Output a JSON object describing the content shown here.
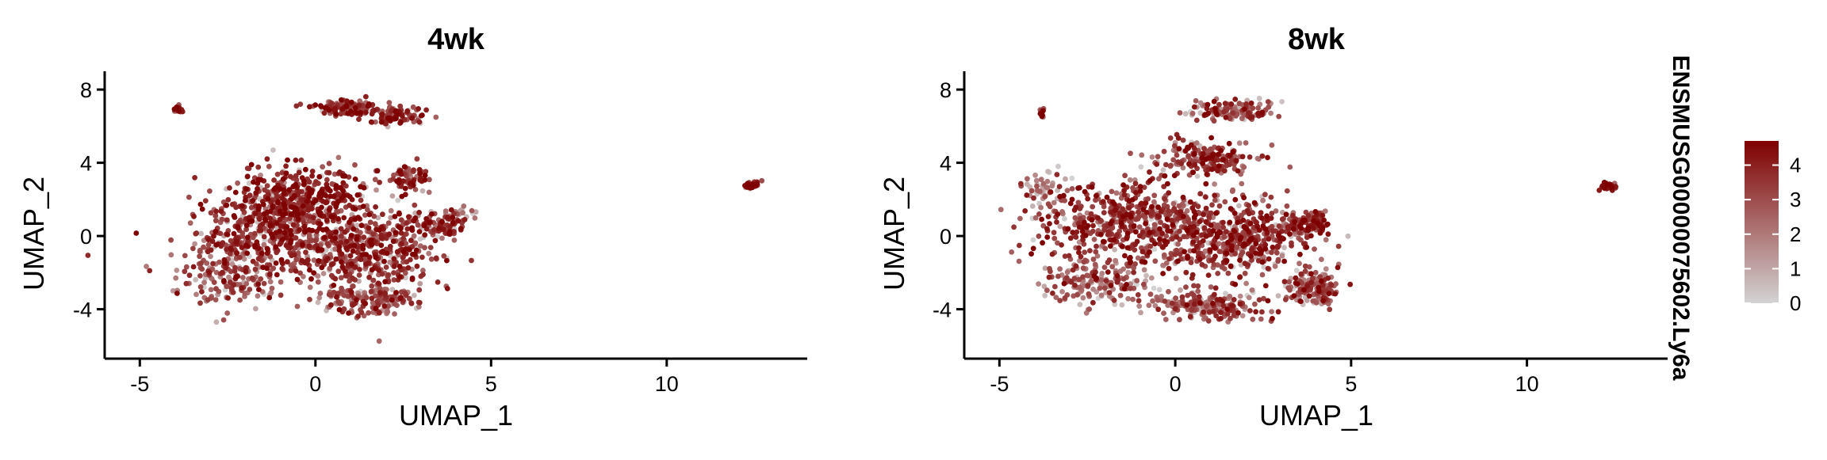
{
  "chart_data": [
    {
      "type": "scatter",
      "title": "4wk",
      "xlabel": "UMAP_1",
      "ylabel": "UMAP_2",
      "xlim": [
        -6,
        14
      ],
      "ylim": [
        -6.7,
        9
      ],
      "x_ticks": [
        -5,
        0,
        5,
        10
      ],
      "y_ticks": [
        -4,
        0,
        4,
        8
      ],
      "x_tick_labels": [
        "-5",
        "0",
        "5",
        "10"
      ],
      "y_tick_labels": [
        "-4",
        "0",
        "4",
        "8"
      ],
      "grid": false,
      "color_by": "ENSMUSG00000075602.Ly6a expression",
      "clusters": [
        {
          "center": [
            -3.9,
            6.9
          ],
          "spread": [
            0.08,
            0.15
          ],
          "points": 16,
          "expr_mean": 3.8
        },
        {
          "center": [
            0.9,
            7.0
          ],
          "spread": [
            0.55,
            0.32
          ],
          "points": 110,
          "expr_mean": 3.6
        },
        {
          "center": [
            2.3,
            6.6
          ],
          "spread": [
            0.55,
            0.35
          ],
          "points": 90,
          "expr_mean": 3.4
        },
        {
          "center": [
            -0.6,
            2.2
          ],
          "spread": [
            1.2,
            1.1
          ],
          "points": 330,
          "expr_mean": 3.9
        },
        {
          "center": [
            -1.2,
            0.0
          ],
          "spread": [
            1.7,
            1.6
          ],
          "points": 520,
          "expr_mean": 3.6
        },
        {
          "center": [
            1.6,
            -0.8
          ],
          "spread": [
            1.2,
            1.7
          ],
          "points": 420,
          "expr_mean": 3.4
        },
        {
          "center": [
            1.6,
            -3.5
          ],
          "spread": [
            0.9,
            0.55
          ],
          "points": 160,
          "expr_mean": 2.8
        },
        {
          "center": [
            -2.4,
            -2.3
          ],
          "spread": [
            0.9,
            1.1
          ],
          "points": 160,
          "expr_mean": 2.6
        },
        {
          "center": [
            2.6,
            3.2
          ],
          "spread": [
            0.4,
            0.5
          ],
          "points": 70,
          "expr_mean": 3.5
        },
        {
          "center": [
            3.5,
            0.6
          ],
          "spread": [
            0.5,
            0.45
          ],
          "points": 90,
          "expr_mean": 3.5
        },
        {
          "center": [
            4.1,
            1.2
          ],
          "spread": [
            0.25,
            0.25
          ],
          "points": 18,
          "expr_mean": 2.2
        },
        {
          "center": [
            12.4,
            2.8
          ],
          "spread": [
            0.16,
            0.13
          ],
          "points": 40,
          "expr_mean": 4.1
        }
      ]
    },
    {
      "type": "scatter",
      "title": "8wk",
      "xlabel": "UMAP_1",
      "ylabel": "UMAP_2",
      "xlim": [
        -6,
        14
      ],
      "ylim": [
        -6.7,
        9
      ],
      "x_ticks": [
        -5,
        0,
        5,
        10
      ],
      "y_ticks": [
        -4,
        0,
        4,
        8
      ],
      "x_tick_labels": [
        "-5",
        "0",
        "5",
        "10"
      ],
      "y_tick_labels": [
        "-4",
        "0",
        "4",
        "8"
      ],
      "grid": false,
      "color_by": "ENSMUSG00000075602.Ly6a expression",
      "clusters": [
        {
          "center": [
            -3.8,
            6.7
          ],
          "spread": [
            0.07,
            0.2
          ],
          "points": 10,
          "expr_mean": 3.8
        },
        {
          "center": [
            1.6,
            6.9
          ],
          "spread": [
            0.85,
            0.35
          ],
          "points": 130,
          "expr_mean": 3.0
        },
        {
          "center": [
            0.9,
            4.3
          ],
          "spread": [
            0.9,
            0.6
          ],
          "points": 170,
          "expr_mean": 3.2
        },
        {
          "center": [
            -1.3,
            0.7
          ],
          "spread": [
            1.7,
            1.5
          ],
          "points": 560,
          "expr_mean": 3.5
        },
        {
          "center": [
            1.8,
            -0.2
          ],
          "spread": [
            1.3,
            1.5
          ],
          "points": 470,
          "expr_mean": 3.3
        },
        {
          "center": [
            -2.2,
            -2.5
          ],
          "spread": [
            1.0,
            0.9
          ],
          "points": 170,
          "expr_mean": 2.5
        },
        {
          "center": [
            0.9,
            -3.9
          ],
          "spread": [
            1.1,
            0.6
          ],
          "points": 190,
          "expr_mean": 2.6
        },
        {
          "center": [
            3.9,
            -2.8
          ],
          "spread": [
            0.55,
            0.55
          ],
          "points": 140,
          "expr_mean": 2.9
        },
        {
          "center": [
            3.8,
            0.6
          ],
          "spread": [
            0.45,
            0.45
          ],
          "points": 100,
          "expr_mean": 3.6
        },
        {
          "center": [
            -3.7,
            2.6
          ],
          "spread": [
            0.45,
            0.55
          ],
          "points": 45,
          "expr_mean": 2.0
        },
        {
          "center": [
            12.3,
            2.7
          ],
          "spread": [
            0.2,
            0.13
          ],
          "points": 36,
          "expr_mean": 3.7
        }
      ]
    }
  ],
  "legend": {
    "title": "ENSMUSG00000075602.Ly6a",
    "min": 0,
    "max": 4.7,
    "ticks": [
      0,
      1,
      2,
      3,
      4
    ],
    "tick_labels": [
      "0",
      "1",
      "2",
      "3",
      "4"
    ],
    "color_low": "#d3d3d3",
    "color_high": "#7f0000"
  }
}
